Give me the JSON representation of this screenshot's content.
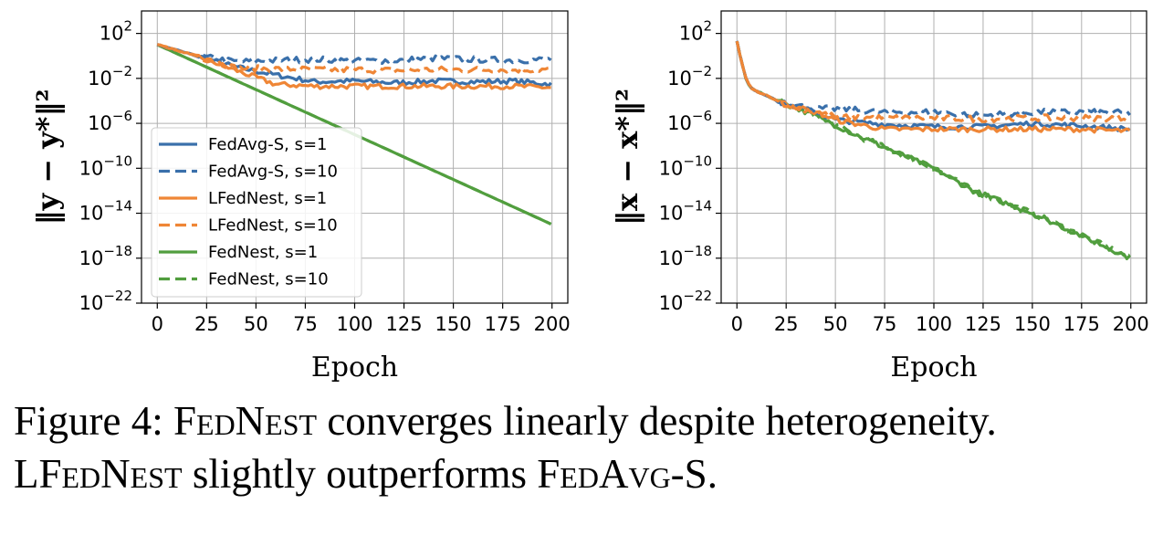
{
  "caption": {
    "label": "Figure 4:",
    "fednest": "FedNest",
    "text1": "converges linearly despite heterogeneity.",
    "lfednest": "LFedNest",
    "text2": "slightly outperforms",
    "fedavg": "FedAvg-S",
    "period": "."
  },
  "colors": {
    "blue": "#3a70ab",
    "orange": "#ef8636",
    "green": "#519e3e"
  },
  "chart_data": [
    {
      "type": "line",
      "ylabel": "‖y − y*‖²",
      "xlabel": "Epoch",
      "xlim": [
        -8,
        208
      ],
      "ylim": [
        1e-22,
        10000.0
      ],
      "yscale": "log",
      "xticks": [
        "0",
        "25",
        "50",
        "75",
        "100",
        "125",
        "150",
        "175",
        "200"
      ],
      "yticks": [
        {
          "base": "10",
          "exp": "2"
        },
        {
          "base": "10",
          "exp": "−2"
        },
        {
          "base": "10",
          "exp": "−6"
        },
        {
          "base": "10",
          "exp": "−10"
        },
        {
          "base": "10",
          "exp": "−14"
        },
        {
          "base": "10",
          "exp": "−18"
        },
        {
          "base": "10",
          "exp": "−22"
        }
      ],
      "grid": true,
      "legend": "center-left",
      "series": [
        {
          "name": "FedAvg-S, s=1",
          "color": "#3a70ab",
          "dash": false,
          "x": [
            0,
            20,
            40,
            60,
            80,
            100,
            120,
            140,
            160,
            180,
            200
          ],
          "y": [
            10,
            1,
            0.1,
            0.02,
            0.005,
            0.006,
            0.004,
            0.006,
            0.005,
            0.006,
            0.003
          ]
        },
        {
          "name": "FedAvg-S, s=10",
          "color": "#3a70ab",
          "dash": true,
          "x": [
            0,
            20,
            40,
            60,
            80,
            100,
            120,
            140,
            160,
            180,
            200
          ],
          "y": [
            10,
            1,
            0.3,
            0.4,
            0.5,
            0.35,
            0.4,
            0.6,
            0.5,
            0.4,
            0.5
          ]
        },
        {
          "name": "LFedNest, s=1",
          "color": "#ef8636",
          "dash": false,
          "x": [
            0,
            20,
            40,
            60,
            80,
            100,
            120,
            140,
            160,
            180,
            200
          ],
          "y": [
            10,
            1,
            0.05,
            0.003,
            0.002,
            0.002,
            0.002,
            0.002,
            0.002,
            0.002,
            0.0015
          ]
        },
        {
          "name": "LFedNest, s=10",
          "color": "#ef8636",
          "dash": true,
          "x": [
            0,
            20,
            40,
            60,
            80,
            100,
            120,
            140,
            160,
            180,
            200
          ],
          "y": [
            10,
            1,
            0.08,
            0.07,
            0.06,
            0.06,
            0.05,
            0.06,
            0.06,
            0.06,
            0.06
          ]
        },
        {
          "name": "FedNest, s=1",
          "color": "#519e3e",
          "dash": false,
          "x": [
            0,
            200
          ],
          "y": [
            10,
            1e-15
          ]
        },
        {
          "name": "FedNest, s=10",
          "color": "#519e3e",
          "dash": true,
          "x": [
            0,
            200
          ],
          "y": [
            10,
            1e-15
          ]
        }
      ]
    },
    {
      "type": "line",
      "ylabel": "‖x − x*‖²",
      "xlabel": "Epoch",
      "xlim": [
        -8,
        208
      ],
      "ylim": [
        1e-22,
        10000.0
      ],
      "yscale": "log",
      "xticks": [
        "0",
        "25",
        "50",
        "75",
        "100",
        "125",
        "150",
        "175",
        "200"
      ],
      "yticks": [
        {
          "base": "10",
          "exp": "2"
        },
        {
          "base": "10",
          "exp": "−2"
        },
        {
          "base": "10",
          "exp": "−6"
        },
        {
          "base": "10",
          "exp": "−10"
        },
        {
          "base": "10",
          "exp": "−14"
        },
        {
          "base": "10",
          "exp": "−18"
        },
        {
          "base": "10",
          "exp": "−22"
        }
      ],
      "grid": true,
      "series": [
        {
          "name": "FedAvg-S, s=1",
          "color": "#3a70ab",
          "dash": false,
          "x": [
            0,
            2,
            5,
            8,
            15,
            25,
            40,
            50,
            75,
            100,
            125,
            150,
            175,
            200
          ],
          "y": [
            20,
            0.5,
            0.005,
            0.001,
            0.0003,
            5e-05,
            1e-05,
            2e-06,
            8e-07,
            5e-07,
            5e-07,
            1e-06,
            6e-07,
            3e-07
          ]
        },
        {
          "name": "FedAvg-S, s=10",
          "color": "#3a70ab",
          "dash": true,
          "x": [
            0,
            2,
            5,
            8,
            15,
            25,
            40,
            50,
            75,
            100,
            125,
            150,
            175,
            200
          ],
          "y": [
            20,
            0.5,
            0.005,
            0.001,
            0.0003,
            5e-05,
            2e-05,
            2e-05,
            1e-05,
            1e-05,
            5e-06,
            1e-05,
            1e-05,
            8e-06
          ]
        },
        {
          "name": "LFedNest, s=1",
          "color": "#ef8636",
          "dash": false,
          "x": [
            0,
            2,
            5,
            8,
            15,
            25,
            40,
            50,
            75,
            100,
            125,
            150,
            175,
            200
          ],
          "y": [
            20,
            0.5,
            0.005,
            0.001,
            0.0003,
            5e-05,
            1e-05,
            2e-06,
            3e-07,
            3e-07,
            3e-07,
            3e-07,
            3e-07,
            2e-07
          ]
        },
        {
          "name": "LFedNest, s=10",
          "color": "#ef8636",
          "dash": true,
          "x": [
            0,
            2,
            5,
            8,
            15,
            25,
            40,
            50,
            75,
            100,
            125,
            150,
            175,
            200
          ],
          "y": [
            20,
            0.5,
            0.005,
            0.001,
            0.0003,
            5e-05,
            1e-05,
            4e-06,
            3e-06,
            3e-06,
            2.5e-06,
            3e-06,
            3e-06,
            3e-06
          ]
        },
        {
          "name": "FedNest, s=1",
          "color": "#519e3e",
          "dash": false,
          "x": [
            0,
            2,
            5,
            8,
            15,
            25,
            40,
            60,
            80,
            100,
            120,
            150,
            175,
            200
          ],
          "y": [
            20,
            0.5,
            0.005,
            0.001,
            0.0003,
            5e-05,
            5e-06,
            1e-07,
            3e-09,
            1e-10,
            1e-12,
            1e-14,
            1e-16,
            1e-18
          ]
        },
        {
          "name": "FedNest, s=10",
          "color": "#519e3e",
          "dash": true,
          "x": [
            0,
            2,
            5,
            8,
            15,
            25,
            40,
            60,
            80,
            100,
            120,
            150,
            175,
            200
          ],
          "y": [
            20,
            0.5,
            0.005,
            0.001,
            0.0003,
            5e-05,
            5e-06,
            1e-07,
            3e-09,
            1e-10,
            1e-12,
            1e-14,
            1e-16,
            1e-18
          ]
        }
      ]
    }
  ]
}
